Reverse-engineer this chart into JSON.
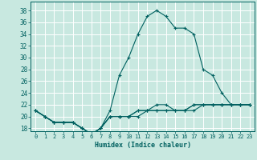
{
  "title": "",
  "xlabel": "Humidex (Indice chaleur)",
  "ylabel": "",
  "bg_color": "#c8e8e0",
  "grid_color": "#ffffff",
  "line_color": "#006060",
  "xlim": [
    -0.5,
    23.5
  ],
  "ylim": [
    17.5,
    39.5
  ],
  "yticks": [
    18,
    20,
    22,
    24,
    26,
    28,
    30,
    32,
    34,
    36,
    38
  ],
  "xticks": [
    0,
    1,
    2,
    3,
    4,
    5,
    6,
    7,
    8,
    9,
    10,
    11,
    12,
    13,
    14,
    15,
    16,
    17,
    18,
    19,
    20,
    21,
    22,
    23
  ],
  "series": [
    [
      21,
      20,
      19,
      19,
      19,
      18,
      17,
      18,
      21,
      27,
      30,
      34,
      37,
      38,
      37,
      35,
      35,
      34,
      28,
      27,
      24,
      22,
      22,
      22
    ],
    [
      21,
      20,
      19,
      19,
      19,
      18,
      17,
      18,
      20,
      20,
      20,
      21,
      21,
      22,
      22,
      21,
      21,
      21,
      22,
      22,
      22,
      22,
      22,
      22
    ],
    [
      21,
      20,
      19,
      19,
      19,
      18,
      17,
      18,
      20,
      20,
      20,
      21,
      21,
      21,
      21,
      21,
      21,
      22,
      22,
      22,
      22,
      22,
      22,
      22
    ],
    [
      21,
      20,
      19,
      19,
      19,
      18,
      17,
      18,
      20,
      20,
      20,
      20,
      21,
      21,
      21,
      21,
      21,
      22,
      22,
      22,
      22,
      22,
      22,
      22
    ]
  ]
}
